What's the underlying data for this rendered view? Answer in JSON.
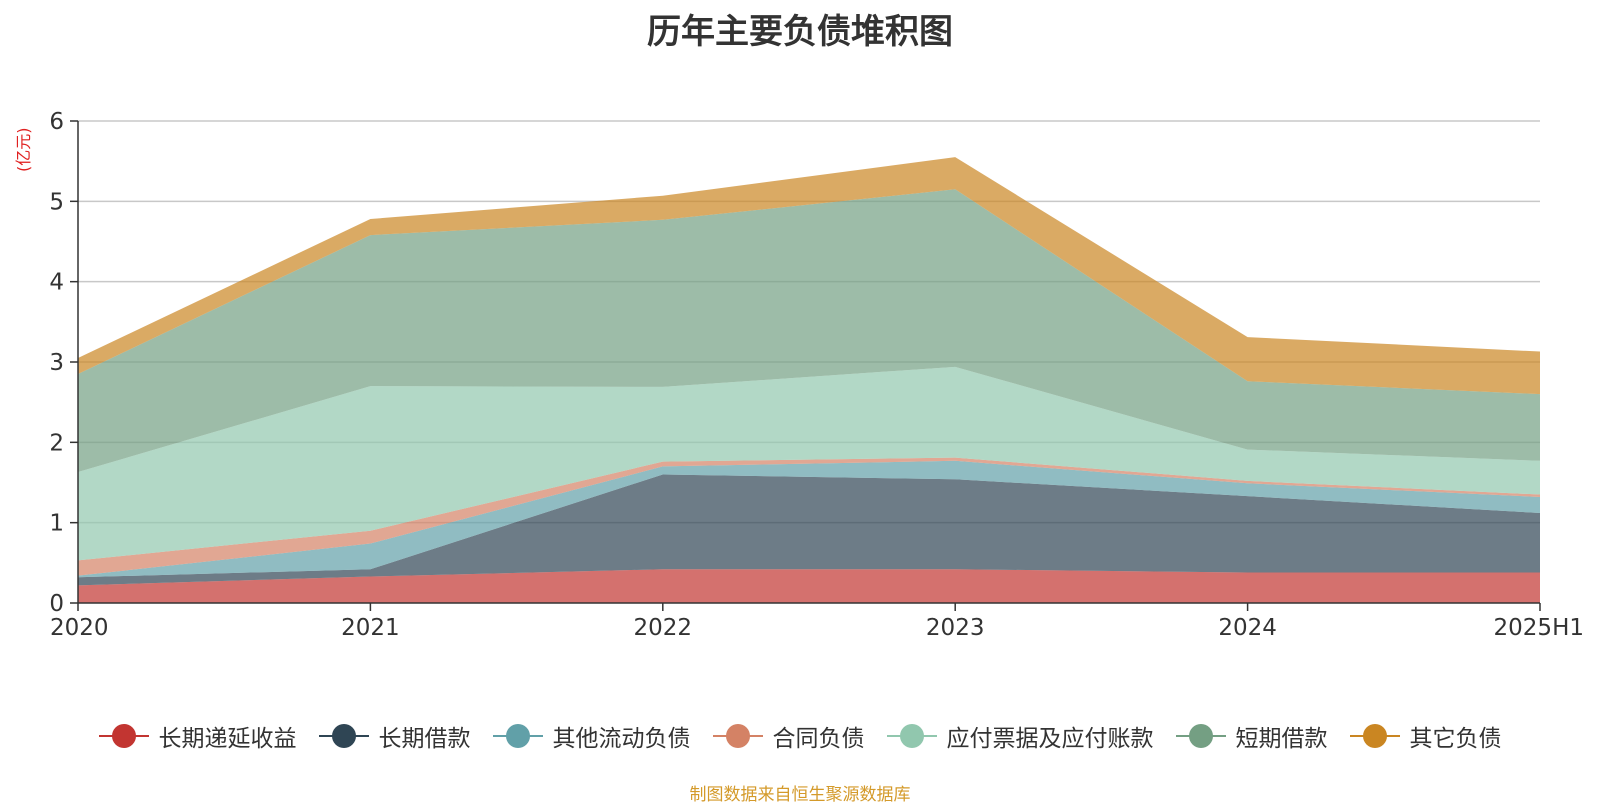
{
  "chart_data": {
    "type": "area",
    "title": "历年主要负债堆积图",
    "unit_label": "(亿元)",
    "categories": [
      "2020",
      "2021",
      "2022",
      "2023",
      "2024",
      "2025H1"
    ],
    "ylim": [
      0,
      6
    ],
    "yticks": [
      0,
      1,
      2,
      3,
      4,
      5,
      6
    ],
    "stacked": true,
    "grid": true,
    "legend_position": "bottom",
    "series": [
      {
        "name": "长期递延收益",
        "color": "#c23531",
        "values": [
          0.22,
          0.33,
          0.42,
          0.42,
          0.38,
          0.38
        ]
      },
      {
        "name": "长期借款",
        "color": "#2f4554",
        "values": [
          0.1,
          0.09,
          1.18,
          1.12,
          0.95,
          0.74
        ]
      },
      {
        "name": "其他流动负债",
        "color": "#61a0a8",
        "values": [
          0.02,
          0.32,
          0.1,
          0.23,
          0.16,
          0.2
        ]
      },
      {
        "name": "合同负债",
        "color": "#d48265",
        "values": [
          0.19,
          0.16,
          0.06,
          0.04,
          0.03,
          0.03
        ]
      },
      {
        "name": "应付票据及应付账款",
        "color": "#91c7ae",
        "values": [
          1.1,
          1.8,
          0.93,
          1.13,
          0.39,
          0.42
        ]
      },
      {
        "name": "短期借款",
        "color": "#749f83",
        "values": [
          1.22,
          1.88,
          2.08,
          2.21,
          0.85,
          0.83
        ]
      },
      {
        "name": "其它负债",
        "color": "#ca8622",
        "values": [
          0.2,
          0.2,
          0.3,
          0.4,
          0.55,
          0.53
        ]
      }
    ]
  },
  "source_note": "制图数据来自恒生聚源数据库"
}
